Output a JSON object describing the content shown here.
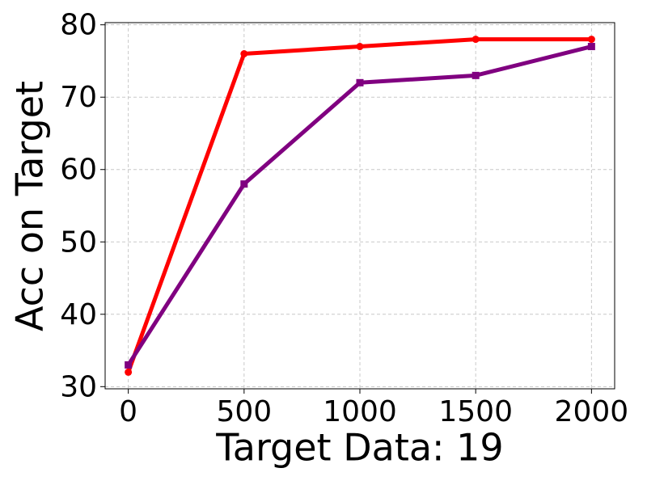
{
  "chart_data": {
    "type": "line",
    "xlabel": "Target Data: 19",
    "ylabel": "Acc on Target",
    "x": [
      0,
      500,
      1000,
      1500,
      2000
    ],
    "series": [
      {
        "color": "#ff0000",
        "marker": "circle",
        "values": [
          32,
          76,
          77,
          78,
          78
        ]
      },
      {
        "color": "#800080",
        "marker": "square",
        "values": [
          33,
          58,
          72,
          73,
          77
        ]
      }
    ],
    "xlim": [
      -100,
      2100
    ],
    "xticks": [
      0,
      500,
      1000,
      1500,
      2000
    ],
    "ylim": [
      29.7,
      80.3
    ],
    "yticks": [
      30,
      40,
      50,
      60,
      70,
      80
    ],
    "grid": true
  }
}
